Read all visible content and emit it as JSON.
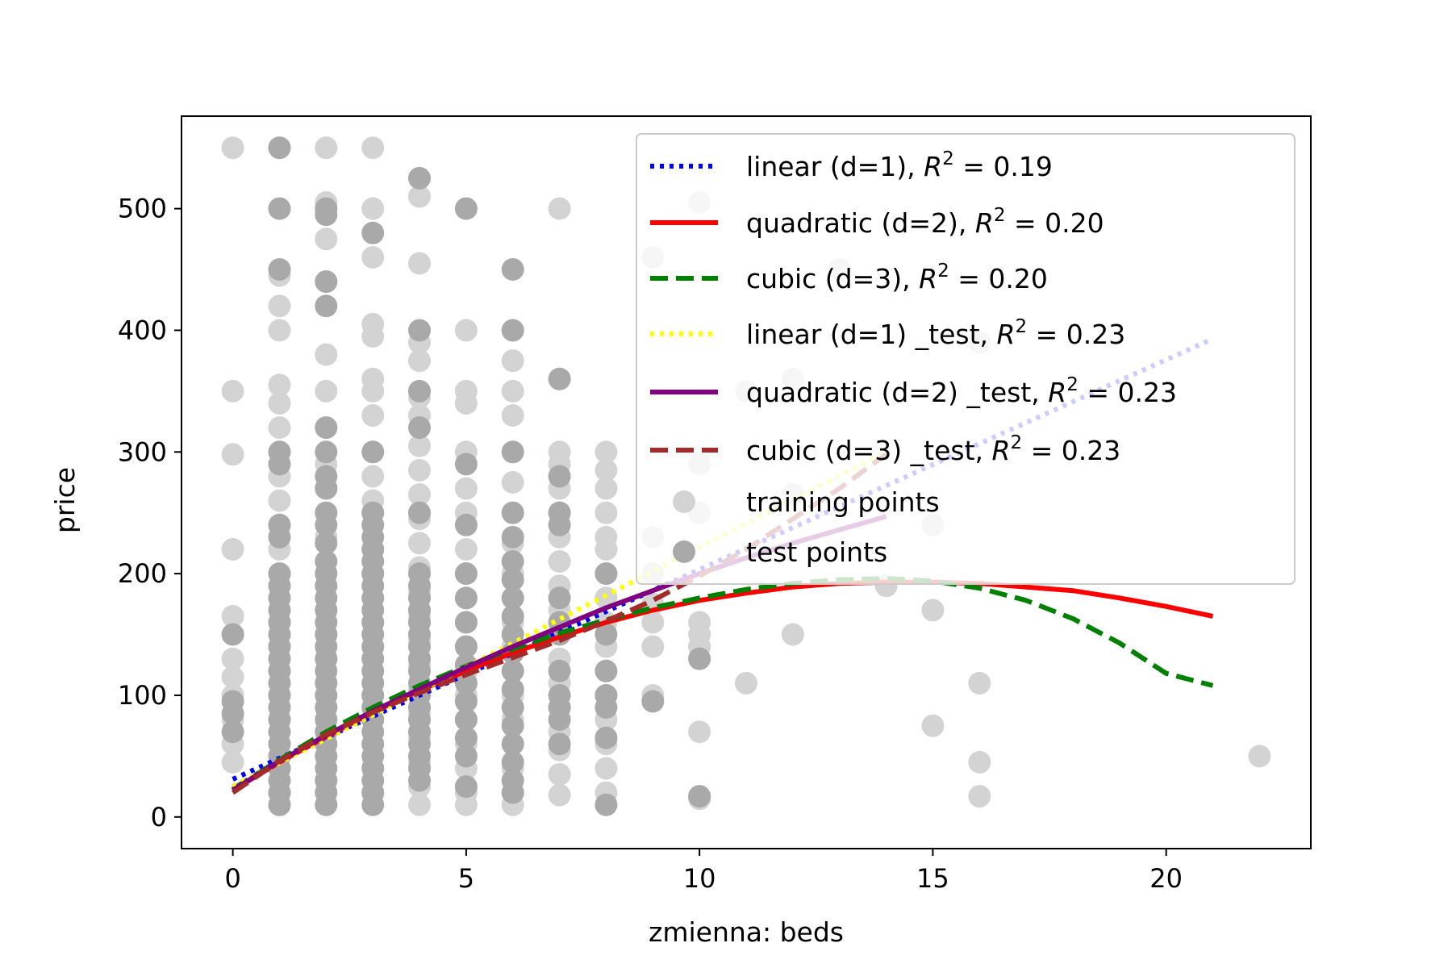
{
  "chart_data": {
    "type": "scatter",
    "xlabel": "zmienna: beds",
    "ylabel": "price",
    "xlim": [
      -1.1,
      23.1
    ],
    "ylim": [
      -26,
      576
    ],
    "xticks": [
      0,
      5,
      10,
      15,
      20
    ],
    "yticks": [
      0,
      100,
      200,
      300,
      400,
      500
    ],
    "grid": false,
    "legend": "top-right",
    "colors": {
      "training": "#d3d3d3",
      "test": "#a9a9a9",
      "linear": "#0000ff",
      "quadratic": "#ff0000",
      "cubic": "#008000",
      "linear_test": "#ffff00",
      "quadratic_test": "#800080",
      "cubic_test": "#a52a2a"
    },
    "training_points": [
      [
        0,
        550
      ],
      [
        0,
        350
      ],
      [
        0,
        298
      ],
      [
        0,
        220
      ],
      [
        0,
        165
      ],
      [
        0,
        150
      ],
      [
        0,
        130
      ],
      [
        0,
        115
      ],
      [
        0,
        100
      ],
      [
        0,
        80
      ],
      [
        0,
        60
      ],
      [
        0,
        45
      ],
      [
        1,
        550
      ],
      [
        1,
        445
      ],
      [
        1,
        420
      ],
      [
        1,
        400
      ],
      [
        1,
        355
      ],
      [
        1,
        340
      ],
      [
        1,
        320
      ],
      [
        1,
        300
      ],
      [
        1,
        280
      ],
      [
        1,
        260
      ],
      [
        1,
        240
      ],
      [
        1,
        220
      ],
      [
        1,
        200
      ],
      [
        1,
        180
      ],
      [
        1,
        160
      ],
      [
        1,
        140
      ],
      [
        1,
        120
      ],
      [
        1,
        100
      ],
      [
        1,
        80
      ],
      [
        1,
        60
      ],
      [
        1,
        40
      ],
      [
        1,
        20
      ],
      [
        1,
        10
      ],
      [
        2,
        550
      ],
      [
        2,
        505
      ],
      [
        2,
        475
      ],
      [
        2,
        440
      ],
      [
        2,
        380
      ],
      [
        2,
        350
      ],
      [
        2,
        320
      ],
      [
        2,
        290
      ],
      [
        2,
        270
      ],
      [
        2,
        250
      ],
      [
        2,
        230
      ],
      [
        2,
        210
      ],
      [
        2,
        190
      ],
      [
        2,
        170
      ],
      [
        2,
        150
      ],
      [
        2,
        130
      ],
      [
        2,
        110
      ],
      [
        2,
        90
      ],
      [
        2,
        70
      ],
      [
        2,
        50
      ],
      [
        2,
        30
      ],
      [
        2,
        10
      ],
      [
        3,
        550
      ],
      [
        3,
        500
      ],
      [
        3,
        460
      ],
      [
        3,
        405
      ],
      [
        3,
        395
      ],
      [
        3,
        360
      ],
      [
        3,
        350
      ],
      [
        3,
        330
      ],
      [
        3,
        300
      ],
      [
        3,
        280
      ],
      [
        3,
        260
      ],
      [
        3,
        240
      ],
      [
        3,
        220
      ],
      [
        3,
        200
      ],
      [
        3,
        180
      ],
      [
        3,
        160
      ],
      [
        3,
        140
      ],
      [
        3,
        120
      ],
      [
        3,
        100
      ],
      [
        3,
        80
      ],
      [
        3,
        60
      ],
      [
        3,
        40
      ],
      [
        3,
        20
      ],
      [
        4,
        510
      ],
      [
        4,
        455
      ],
      [
        4,
        390
      ],
      [
        4,
        375
      ],
      [
        4,
        345
      ],
      [
        4,
        330
      ],
      [
        4,
        305
      ],
      [
        4,
        285
      ],
      [
        4,
        265
      ],
      [
        4,
        245
      ],
      [
        4,
        225
      ],
      [
        4,
        205
      ],
      [
        4,
        185
      ],
      [
        4,
        165
      ],
      [
        4,
        145
      ],
      [
        4,
        125
      ],
      [
        4,
        105
      ],
      [
        4,
        85
      ],
      [
        4,
        65
      ],
      [
        4,
        45
      ],
      [
        4,
        25
      ],
      [
        4,
        10
      ],
      [
        5,
        400
      ],
      [
        5,
        350
      ],
      [
        5,
        340
      ],
      [
        5,
        300
      ],
      [
        5,
        270
      ],
      [
        5,
        250
      ],
      [
        5,
        220
      ],
      [
        5,
        200
      ],
      [
        5,
        180
      ],
      [
        5,
        160
      ],
      [
        5,
        140
      ],
      [
        5,
        120
      ],
      [
        5,
        100
      ],
      [
        5,
        80
      ],
      [
        5,
        60
      ],
      [
        5,
        40
      ],
      [
        5,
        20
      ],
      [
        5,
        10
      ],
      [
        6,
        400
      ],
      [
        6,
        375
      ],
      [
        6,
        350
      ],
      [
        6,
        330
      ],
      [
        6,
        300
      ],
      [
        6,
        275
      ],
      [
        6,
        250
      ],
      [
        6,
        225
      ],
      [
        6,
        200
      ],
      [
        6,
        180
      ],
      [
        6,
        160
      ],
      [
        6,
        140
      ],
      [
        6,
        120
      ],
      [
        6,
        100
      ],
      [
        6,
        80
      ],
      [
        6,
        60
      ],
      [
        6,
        40
      ],
      [
        6,
        20
      ],
      [
        6,
        10
      ],
      [
        7,
        500
      ],
      [
        7,
        360
      ],
      [
        7,
        300
      ],
      [
        7,
        290
      ],
      [
        7,
        270
      ],
      [
        7,
        250
      ],
      [
        7,
        230
      ],
      [
        7,
        210
      ],
      [
        7,
        190
      ],
      [
        7,
        170
      ],
      [
        7,
        150
      ],
      [
        7,
        130
      ],
      [
        7,
        110
      ],
      [
        7,
        90
      ],
      [
        7,
        70
      ],
      [
        7,
        55
      ],
      [
        7,
        35
      ],
      [
        7,
        18
      ],
      [
        8,
        300
      ],
      [
        8,
        285
      ],
      [
        8,
        270
      ],
      [
        8,
        250
      ],
      [
        8,
        230
      ],
      [
        8,
        220
      ],
      [
        8,
        200
      ],
      [
        8,
        180
      ],
      [
        8,
        160
      ],
      [
        8,
        140
      ],
      [
        8,
        120
      ],
      [
        8,
        100
      ],
      [
        8,
        80
      ],
      [
        8,
        60
      ],
      [
        8,
        40
      ],
      [
        8,
        20
      ],
      [
        9,
        460
      ],
      [
        9,
        230
      ],
      [
        9,
        200
      ],
      [
        9,
        175
      ],
      [
        9,
        160
      ],
      [
        9,
        140
      ],
      [
        9,
        100
      ],
      [
        10,
        505
      ],
      [
        10,
        290
      ],
      [
        10,
        250
      ],
      [
        10,
        160
      ],
      [
        10,
        150
      ],
      [
        10,
        140
      ],
      [
        10,
        70
      ],
      [
        10,
        15
      ],
      [
        11,
        350
      ],
      [
        11,
        110
      ],
      [
        12,
        360
      ],
      [
        12,
        265
      ],
      [
        12,
        150
      ],
      [
        13,
        450
      ],
      [
        14,
        190
      ],
      [
        15,
        240
      ],
      [
        15,
        170
      ],
      [
        15,
        75
      ],
      [
        16,
        390
      ],
      [
        16,
        110
      ],
      [
        16,
        45
      ],
      [
        16,
        17
      ],
      [
        22,
        50
      ]
    ],
    "test_points": [
      [
        0,
        150
      ],
      [
        0,
        95
      ],
      [
        0,
        85
      ],
      [
        0,
        70
      ],
      [
        1,
        550
      ],
      [
        1,
        500
      ],
      [
        1,
        450
      ],
      [
        1,
        300
      ],
      [
        1,
        290
      ],
      [
        1,
        240
      ],
      [
        1,
        230
      ],
      [
        1,
        200
      ],
      [
        1,
        190
      ],
      [
        1,
        180
      ],
      [
        1,
        170
      ],
      [
        1,
        160
      ],
      [
        1,
        150
      ],
      [
        1,
        140
      ],
      [
        1,
        130
      ],
      [
        1,
        120
      ],
      [
        1,
        110
      ],
      [
        1,
        100
      ],
      [
        1,
        90
      ],
      [
        1,
        80
      ],
      [
        1,
        70
      ],
      [
        1,
        60
      ],
      [
        1,
        50
      ],
      [
        1,
        40
      ],
      [
        1,
        30
      ],
      [
        1,
        20
      ],
      [
        1,
        10
      ],
      [
        2,
        500
      ],
      [
        2,
        495
      ],
      [
        2,
        440
      ],
      [
        2,
        420
      ],
      [
        2,
        320
      ],
      [
        2,
        300
      ],
      [
        2,
        280
      ],
      [
        2,
        270
      ],
      [
        2,
        250
      ],
      [
        2,
        240
      ],
      [
        2,
        225
      ],
      [
        2,
        210
      ],
      [
        2,
        200
      ],
      [
        2,
        190
      ],
      [
        2,
        180
      ],
      [
        2,
        170
      ],
      [
        2,
        160
      ],
      [
        2,
        150
      ],
      [
        2,
        140
      ],
      [
        2,
        130
      ],
      [
        2,
        120
      ],
      [
        2,
        110
      ],
      [
        2,
        100
      ],
      [
        2,
        90
      ],
      [
        2,
        80
      ],
      [
        2,
        70
      ],
      [
        2,
        60
      ],
      [
        2,
        50
      ],
      [
        2,
        40
      ],
      [
        2,
        30
      ],
      [
        2,
        20
      ],
      [
        2,
        10
      ],
      [
        3,
        480
      ],
      [
        3,
        300
      ],
      [
        3,
        250
      ],
      [
        3,
        240
      ],
      [
        3,
        230
      ],
      [
        3,
        220
      ],
      [
        3,
        210
      ],
      [
        3,
        200
      ],
      [
        3,
        190
      ],
      [
        3,
        180
      ],
      [
        3,
        170
      ],
      [
        3,
        160
      ],
      [
        3,
        150
      ],
      [
        3,
        140
      ],
      [
        3,
        130
      ],
      [
        3,
        120
      ],
      [
        3,
        110
      ],
      [
        3,
        100
      ],
      [
        3,
        90
      ],
      [
        3,
        80
      ],
      [
        3,
        70
      ],
      [
        3,
        60
      ],
      [
        3,
        50
      ],
      [
        3,
        40
      ],
      [
        3,
        30
      ],
      [
        3,
        20
      ],
      [
        3,
        10
      ],
      [
        4,
        525
      ],
      [
        4,
        400
      ],
      [
        4,
        350
      ],
      [
        4,
        320
      ],
      [
        4,
        250
      ],
      [
        4,
        200
      ],
      [
        4,
        190
      ],
      [
        4,
        180
      ],
      [
        4,
        170
      ],
      [
        4,
        160
      ],
      [
        4,
        150
      ],
      [
        4,
        140
      ],
      [
        4,
        130
      ],
      [
        4,
        120
      ],
      [
        4,
        110
      ],
      [
        4,
        100
      ],
      [
        4,
        90
      ],
      [
        4,
        80
      ],
      [
        4,
        70
      ],
      [
        4,
        60
      ],
      [
        4,
        50
      ],
      [
        4,
        40
      ],
      [
        4,
        30
      ],
      [
        5,
        500
      ],
      [
        5,
        290
      ],
      [
        5,
        240
      ],
      [
        5,
        200
      ],
      [
        5,
        180
      ],
      [
        5,
        160
      ],
      [
        5,
        140
      ],
      [
        5,
        125
      ],
      [
        5,
        110
      ],
      [
        5,
        95
      ],
      [
        5,
        80
      ],
      [
        5,
        65
      ],
      [
        5,
        50
      ],
      [
        5,
        25
      ],
      [
        6,
        450
      ],
      [
        6,
        400
      ],
      [
        6,
        300
      ],
      [
        6,
        250
      ],
      [
        6,
        230
      ],
      [
        6,
        210
      ],
      [
        6,
        195
      ],
      [
        6,
        180
      ],
      [
        6,
        165
      ],
      [
        6,
        150
      ],
      [
        6,
        135
      ],
      [
        6,
        120
      ],
      [
        6,
        105
      ],
      [
        6,
        90
      ],
      [
        6,
        75
      ],
      [
        6,
        60
      ],
      [
        6,
        45
      ],
      [
        6,
        30
      ],
      [
        6,
        20
      ],
      [
        7,
        360
      ],
      [
        7,
        280
      ],
      [
        7,
        250
      ],
      [
        7,
        240
      ],
      [
        7,
        180
      ],
      [
        7,
        160
      ],
      [
        7,
        150
      ],
      [
        7,
        120
      ],
      [
        7,
        100
      ],
      [
        7,
        90
      ],
      [
        7,
        80
      ],
      [
        7,
        60
      ],
      [
        8,
        200
      ],
      [
        8,
        150
      ],
      [
        8,
        120
      ],
      [
        8,
        100
      ],
      [
        8,
        90
      ],
      [
        8,
        65
      ],
      [
        8,
        10
      ],
      [
        9,
        95
      ],
      [
        10,
        130
      ],
      [
        10,
        17
      ]
    ],
    "series": [
      {
        "name": "linear (d=1), $R^2 = 0.19$",
        "label_main": "linear (d=1), ",
        "r2": "0.19",
        "key": "linear",
        "style": "dotted",
        "x": [
          0,
          21
        ],
        "y": [
          31,
          393
        ]
      },
      {
        "name": "quadratic (d=2), $R^2 = 0.20$",
        "label_main": "quadratic (d=2), ",
        "r2": "0.20",
        "key": "quadratic",
        "style": "solid",
        "x": [
          0,
          1,
          2,
          3,
          4,
          5,
          6,
          7,
          8,
          9,
          10,
          11,
          12,
          13,
          14,
          15,
          16,
          17,
          18,
          19,
          20,
          21
        ],
        "y": [
          22,
          45,
          66,
          86,
          104,
          120,
          135,
          148,
          160,
          170,
          178,
          184,
          189,
          192,
          193,
          193,
          192,
          189,
          186,
          180,
          173,
          165
        ]
      },
      {
        "name": "cubic (d=3), $R^2 = 0.20$",
        "label_main": "cubic (d=3), ",
        "r2": "0.20",
        "key": "cubic",
        "style": "dashed",
        "x": [
          0,
          1,
          2,
          3,
          4,
          5,
          6,
          7,
          8,
          9,
          10,
          11,
          12,
          13,
          14,
          15,
          16,
          17,
          18,
          19,
          20,
          21
        ],
        "y": [
          23,
          47,
          70,
          90,
          108,
          124,
          138,
          151,
          162,
          172,
          180,
          187,
          192,
          195,
          196,
          194,
          188,
          178,
          163,
          143,
          118,
          108
        ]
      },
      {
        "name": "linear (d=1) _test, $R^2 = 0.23$",
        "label_main": "linear (d=1) _test, ",
        "r2": "0.23",
        "key": "linear_test",
        "style": "dotted",
        "x": [
          0,
          14
        ],
        "y": [
          25,
          300
        ]
      },
      {
        "name": "quadratic (d=2) _test, $R^2 = 0.23$",
        "label_main": "quadratic (d=2) _test, ",
        "r2": "0.23",
        "key": "quadratic_test",
        "style": "solid",
        "x": [
          0,
          1,
          2,
          3,
          4,
          5,
          6,
          7,
          8,
          9,
          10,
          11,
          12,
          13,
          14
        ],
        "y": [
          22,
          46,
          67,
          87,
          105,
          123,
          140,
          156,
          172,
          186,
          200,
          213,
          225,
          236,
          247
        ]
      },
      {
        "name": "cubic (d=3) _test, $R^2 = 0.23$",
        "label_main": "cubic (d=3) _test, ",
        "r2": "0.23",
        "key": "cubic_test",
        "style": "dashed",
        "x": [
          0,
          1,
          2,
          3,
          4,
          5,
          6,
          7,
          8,
          9,
          10,
          11,
          12,
          13,
          14
        ],
        "y": [
          20,
          46,
          68,
          86,
          102,
          117,
          131,
          145,
          161,
          178,
          198,
          220,
          245,
          270,
          298
        ]
      }
    ],
    "scatter_series": [
      {
        "name": "training points",
        "key": "training"
      },
      {
        "name": "test points",
        "key": "test"
      }
    ]
  }
}
